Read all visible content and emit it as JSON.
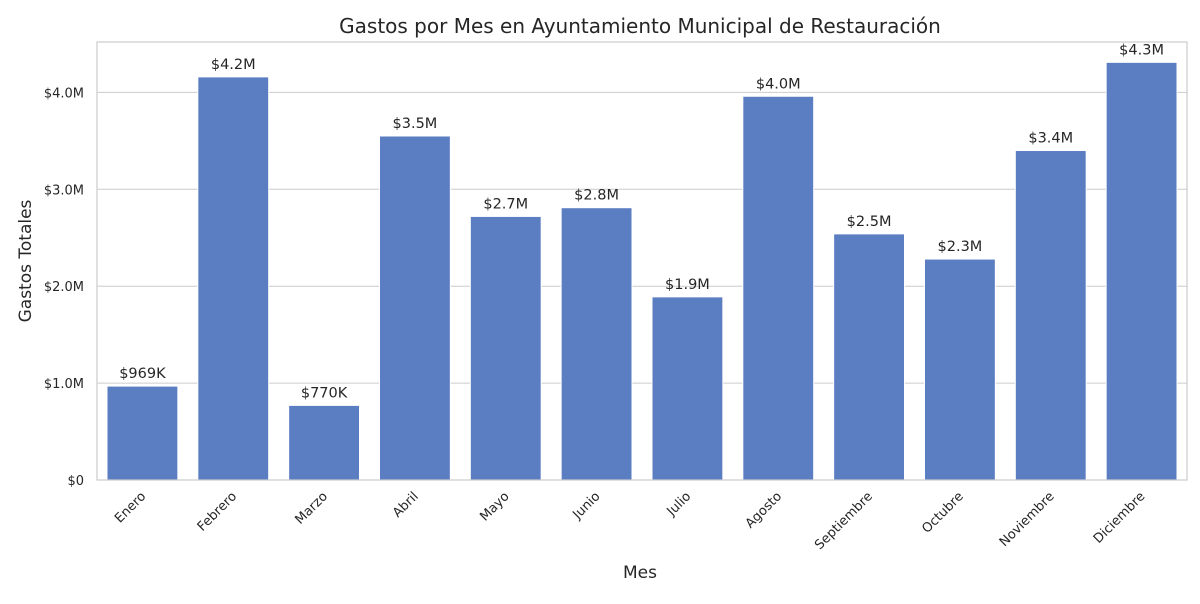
{
  "chart_data": {
    "type": "bar",
    "title": "Gastos por Mes en Ayuntamiento Municipal de Restauración",
    "xlabel": "Mes",
    "ylabel": "Gastos Totales",
    "categories": [
      "Enero",
      "Febrero",
      "Marzo",
      "Abril",
      "Mayo",
      "Junio",
      "Julio",
      "Agosto",
      "Septiembre",
      "Octubre",
      "Noviembre",
      "Diciembre"
    ],
    "values": [
      969000,
      4160000,
      770000,
      3550000,
      2720000,
      2810000,
      1890000,
      3960000,
      2540000,
      2280000,
      3400000,
      4310000
    ],
    "value_labels": [
      "$969K",
      "$4.2M",
      "$770K",
      "$3.5M",
      "$2.7M",
      "$2.8M",
      "$1.9M",
      "$4.0M",
      "$2.5M",
      "$2.3M",
      "$3.4M",
      "$4.3M"
    ],
    "ylim": [
      0,
      4520000
    ],
    "yticks": [
      {
        "value": 0,
        "label": "$0"
      },
      {
        "value": 1000000,
        "label": "$1.0M"
      },
      {
        "value": 2000000,
        "label": "$2.0M"
      },
      {
        "value": 3000000,
        "label": "$3.0M"
      },
      {
        "value": 4000000,
        "label": "$4.0M"
      }
    ],
    "grid": "horizontal",
    "bar_color": "#5b7dc2",
    "grid_color": "#cccccc"
  }
}
